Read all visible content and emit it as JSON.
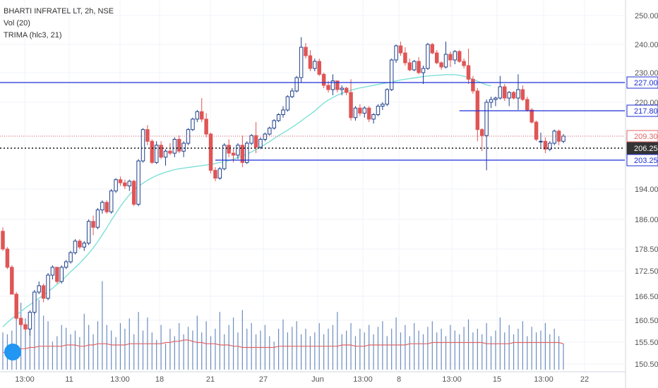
{
  "legend": {
    "title": "BHARTI INFRATEL LT, 2h, NSE",
    "volume": "Vol (20)",
    "indicator": "TRIMA (hlc3, 21)"
  },
  "colors": {
    "up": "#1e3f8a",
    "down": "#e05555",
    "trima": "#7ee0d6",
    "volume": "#6c8cc0",
    "volume_ma": "#e06666",
    "level_line": "#1c2fd6",
    "last_price": "#e06666",
    "dotted": "#111111"
  },
  "chart_data": {
    "type": "candlestick",
    "yaxis_ticks": [
      "250.00",
      "240.00",
      "230.00",
      "220.00",
      "209.30",
      "194.00",
      "186.00",
      "178.50",
      "172.50",
      "166.50",
      "160.50",
      "155.50",
      "150.50"
    ],
    "xaxis_ticks": [
      "13:00",
      "11",
      "13:00",
      "18",
      "21",
      "27",
      "Jun",
      "13:00",
      "8",
      "13:00",
      "15",
      "13:00",
      "22"
    ],
    "price_labels": [
      {
        "text": "227.00",
        "value": 227.0,
        "style": "level"
      },
      {
        "text": "217.80",
        "value": 217.8,
        "style": "level"
      },
      {
        "text": "209.30",
        "value": 209.3,
        "style": "last"
      },
      {
        "text": "206.25",
        "value": 206.25,
        "style": "dark"
      },
      {
        "text": "203.25",
        "value": 203.25,
        "style": "level"
      }
    ],
    "horizontal_lines": [
      {
        "value": 227.0,
        "from_bar": 0,
        "to_bar": -1
      },
      {
        "value": 217.8,
        "from_bar": 101,
        "to_bar": -1
      },
      {
        "value": 203.25,
        "from_bar": 47,
        "to_bar": -1
      }
    ],
    "candles": [
      [
        183.0,
        184.0,
        178.0,
        178.5
      ],
      [
        178.5,
        179.0,
        173.0,
        173.5
      ],
      [
        173.5,
        174.0,
        167.0,
        167.0
      ],
      [
        167.0,
        167.5,
        160.5,
        161.0
      ],
      [
        161.0,
        161.5,
        159.0,
        159.5
      ],
      [
        159.5,
        160.0,
        158.0,
        158.5
      ],
      [
        158.5,
        163.0,
        157.0,
        162.5
      ],
      [
        162.5,
        168.0,
        162.0,
        167.5
      ],
      [
        167.5,
        170.0,
        167.0,
        169.0
      ],
      [
        169.0,
        169.5,
        165.0,
        166.0
      ],
      [
        166.0,
        172.0,
        165.5,
        171.5
      ],
      [
        171.5,
        174.0,
        170.5,
        173.5
      ],
      [
        173.5,
        173.5,
        169.5,
        170.0
      ],
      [
        170.0,
        174.0,
        169.5,
        173.5
      ],
      [
        173.5,
        175.5,
        173.0,
        175.0
      ],
      [
        175.0,
        178.0,
        174.5,
        177.5
      ],
      [
        177.5,
        181.0,
        177.0,
        180.5
      ],
      [
        180.5,
        181.0,
        178.5,
        179.0
      ],
      [
        179.0,
        180.5,
        178.0,
        180.0
      ],
      [
        180.0,
        186.0,
        179.5,
        185.5
      ],
      [
        185.5,
        187.0,
        182.0,
        184.0
      ],
      [
        184.0,
        189.0,
        183.5,
        188.5
      ],
      [
        188.5,
        191.0,
        187.5,
        190.5
      ],
      [
        190.5,
        191.0,
        187.5,
        188.0
      ],
      [
        188.0,
        194.0,
        187.5,
        193.5
      ],
      [
        193.5,
        197.5,
        193.0,
        197.0
      ],
      [
        197.0,
        198.0,
        195.0,
        196.0
      ],
      [
        196.0,
        197.0,
        194.0,
        195.0
      ],
      [
        195.0,
        197.0,
        193.5,
        196.5
      ],
      [
        196.5,
        197.0,
        189.5,
        190.0
      ],
      [
        190.0,
        203.5,
        189.5,
        203.0
      ],
      [
        203.0,
        212.0,
        202.5,
        211.5
      ],
      [
        211.5,
        213.0,
        207.0,
        208.0
      ],
      [
        208.0,
        208.5,
        202.0,
        202.5
      ],
      [
        202.5,
        208.0,
        202.0,
        207.0
      ],
      [
        207.0,
        208.0,
        203.5,
        204.0
      ],
      [
        204.0,
        206.0,
        201.5,
        205.5
      ],
      [
        205.5,
        207.5,
        204.5,
        205.0
      ],
      [
        205.0,
        209.0,
        204.0,
        208.5
      ],
      [
        208.5,
        209.5,
        205.0,
        205.5
      ],
      [
        205.5,
        208.0,
        204.0,
        207.5
      ],
      [
        207.5,
        212.0,
        207.0,
        211.5
      ],
      [
        211.5,
        215.5,
        211.0,
        215.0
      ],
      [
        215.0,
        218.0,
        214.0,
        217.5
      ],
      [
        217.5,
        221.5,
        214.0,
        215.0
      ],
      [
        215.0,
        217.0,
        209.0,
        210.0
      ],
      [
        210.0,
        210.5,
        199.0,
        200.0
      ],
      [
        200.0,
        201.0,
        196.5,
        197.5
      ],
      [
        197.5,
        201.0,
        197.0,
        200.5
      ],
      [
        200.5,
        207.5,
        200.0,
        207.0
      ],
      [
        207.0,
        208.5,
        204.0,
        205.0
      ],
      [
        205.0,
        206.0,
        202.5,
        204.5
      ],
      [
        204.5,
        207.5,
        203.5,
        207.0
      ],
      [
        207.0,
        209.5,
        201.0,
        202.5
      ],
      [
        202.5,
        208.0,
        202.0,
        207.5
      ],
      [
        207.5,
        210.0,
        207.0,
        209.5
      ],
      [
        209.5,
        214.0,
        205.0,
        206.5
      ],
      [
        206.5,
        209.0,
        206.0,
        208.5
      ],
      [
        208.5,
        210.5,
        208.0,
        210.0
      ],
      [
        210.0,
        212.5,
        209.5,
        212.0
      ],
      [
        212.0,
        215.0,
        211.5,
        214.5
      ],
      [
        214.5,
        217.0,
        214.0,
        216.5
      ],
      [
        216.5,
        219.0,
        215.5,
        218.0
      ],
      [
        218.0,
        222.5,
        217.5,
        222.0
      ],
      [
        222.0,
        225.0,
        221.5,
        224.0
      ],
      [
        224.0,
        229.0,
        223.5,
        228.5
      ],
      [
        228.5,
        242.5,
        227.0,
        239.0
      ],
      [
        239.0,
        240.5,
        235.0,
        236.0
      ],
      [
        236.0,
        238.0,
        230.5,
        231.5
      ],
      [
        231.5,
        235.0,
        230.5,
        234.0
      ],
      [
        234.0,
        235.0,
        229.0,
        229.5
      ],
      [
        229.5,
        230.0,
        225.0,
        226.0
      ],
      [
        226.0,
        227.5,
        223.5,
        224.5
      ],
      [
        224.5,
        229.5,
        222.5,
        227.5
      ],
      [
        227.5,
        227.5,
        223.5,
        224.5
      ],
      [
        224.5,
        226.0,
        222.5,
        225.0
      ],
      [
        225.0,
        225.5,
        222.5,
        223.5
      ],
      [
        223.5,
        228.0,
        214.5,
        215.5
      ],
      [
        215.5,
        219.0,
        214.5,
        218.5
      ],
      [
        218.5,
        219.5,
        216.0,
        217.0
      ],
      [
        217.0,
        219.0,
        215.5,
        218.5
      ],
      [
        218.5,
        219.0,
        214.0,
        215.0
      ],
      [
        215.0,
        217.0,
        213.5,
        216.5
      ],
      [
        216.5,
        219.5,
        216.0,
        219.0
      ],
      [
        219.0,
        220.0,
        218.0,
        219.5
      ],
      [
        219.5,
        225.0,
        219.0,
        224.5
      ],
      [
        224.5,
        235.0,
        224.0,
        234.5
      ],
      [
        234.5,
        240.0,
        233.5,
        239.5
      ],
      [
        239.5,
        241.0,
        236.0,
        237.0
      ],
      [
        237.0,
        239.0,
        232.5,
        233.5
      ],
      [
        233.5,
        235.0,
        230.5,
        231.0
      ],
      [
        231.0,
        234.5,
        230.5,
        234.0
      ],
      [
        234.0,
        235.5,
        229.5,
        230.0
      ],
      [
        230.0,
        232.5,
        226.5,
        231.5
      ],
      [
        231.5,
        240.5,
        231.0,
        240.0
      ],
      [
        240.0,
        240.5,
        236.5,
        237.0
      ],
      [
        237.0,
        238.0,
        233.0,
        233.5
      ],
      [
        233.5,
        234.0,
        231.0,
        232.0
      ],
      [
        232.0,
        241.0,
        231.5,
        236.5
      ],
      [
        236.5,
        237.5,
        232.0,
        234.5
      ],
      [
        234.5,
        238.0,
        233.0,
        237.5
      ],
      [
        237.5,
        238.0,
        233.5,
        234.0
      ],
      [
        234.0,
        235.0,
        231.5,
        232.5
      ],
      [
        232.5,
        238.5,
        226.5,
        228.0
      ],
      [
        228.0,
        229.0,
        223.0,
        224.0
      ],
      [
        224.0,
        225.0,
        208.0,
        211.5
      ],
      [
        211.5,
        212.0,
        205.5,
        209.5
      ],
      [
        209.5,
        221.0,
        200.0,
        220.0
      ],
      [
        220.0,
        222.0,
        218.5,
        221.0
      ],
      [
        221.0,
        222.0,
        219.0,
        221.5
      ],
      [
        221.5,
        229.0,
        221.0,
        225.5
      ],
      [
        225.5,
        226.5,
        220.5,
        221.5
      ],
      [
        221.5,
        224.0,
        219.0,
        223.5
      ],
      [
        223.5,
        224.0,
        221.0,
        221.5
      ],
      [
        221.5,
        229.5,
        218.0,
        224.5
      ],
      [
        224.5,
        226.0,
        220.5,
        221.0
      ],
      [
        221.0,
        222.0,
        217.5,
        218.0
      ],
      [
        218.0,
        218.5,
        213.5,
        214.0
      ],
      [
        214.0,
        214.5,
        208.0,
        208.5
      ],
      [
        208.0,
        210.5,
        206.5,
        208.0
      ],
      [
        208.0,
        209.0,
        205.0,
        206.0
      ],
      [
        206.0,
        208.0,
        205.5,
        207.5
      ],
      [
        207.5,
        211.5,
        207.0,
        211.0
      ],
      [
        211.0,
        211.5,
        207.0,
        208.0
      ],
      [
        208.0,
        210.0,
        207.5,
        209.3
      ]
    ],
    "trima": [
      159.0,
      160.0,
      160.9,
      161.8,
      162.7,
      163.6,
      164.4,
      165.2,
      166.0,
      166.8,
      167.6,
      168.4,
      169.3,
      170.2,
      171.2,
      172.3,
      173.4,
      174.6,
      175.9,
      177.3,
      178.8,
      180.4,
      182.1,
      183.9,
      185.8,
      187.6,
      189.4,
      191.0,
      192.5,
      193.8,
      194.9,
      195.9,
      196.8,
      197.6,
      198.3,
      198.9,
      199.4,
      199.8,
      200.2,
      200.5,
      200.7,
      200.9,
      201.1,
      201.3,
      201.5,
      201.7,
      201.9,
      202.2,
      202.5,
      202.8,
      203.1,
      203.5,
      203.9,
      204.3,
      204.8,
      205.3,
      205.9,
      206.5,
      207.2,
      207.9,
      208.7,
      209.5,
      210.4,
      211.3,
      212.3,
      213.3,
      214.4,
      215.5,
      216.6,
      217.7,
      218.8,
      219.8,
      220.8,
      221.7,
      222.5,
      223.2,
      223.8,
      224.3,
      224.7,
      225.1,
      225.4,
      225.7,
      226.0,
      226.3,
      226.6,
      226.9,
      227.2,
      227.5,
      227.8,
      228.0,
      228.2,
      228.4,
      228.6,
      228.8,
      229.0,
      229.1,
      229.2,
      229.3,
      229.4,
      229.4,
      229.4,
      229.2,
      228.9,
      228.5,
      228.0,
      227.4,
      226.8,
      226.2,
      225.8
    ]
  },
  "volume": {
    "bars": [
      40,
      38,
      42,
      62,
      72,
      55,
      45,
      64,
      75,
      58,
      52,
      30,
      36,
      48,
      45,
      38,
      42,
      35,
      60,
      48,
      38,
      52,
      95,
      48,
      42,
      35,
      50,
      44,
      55,
      38,
      62,
      42,
      56,
      40,
      32,
      48,
      28,
      44,
      36,
      50,
      38,
      46,
      42,
      58,
      40,
      52,
      36,
      44,
      62,
      38,
      48,
      56,
      40,
      64,
      44,
      50,
      38,
      42,
      48,
      36,
      30,
      44,
      54,
      40,
      46,
      52,
      38,
      44,
      36,
      40,
      50,
      38,
      44,
      48,
      62,
      38,
      42,
      50,
      36,
      44,
      40,
      48,
      38,
      46,
      52,
      36,
      44,
      56,
      40,
      48,
      36,
      50,
      42,
      38,
      46,
      52,
      40,
      44,
      36,
      48,
      42,
      38,
      46,
      54,
      40,
      44,
      38,
      50,
      36,
      42,
      56,
      40,
      48,
      38,
      44,
      52,
      36,
      46,
      40,
      42,
      50,
      38,
      44,
      36,
      28,
      20
    ],
    "ma": [
      14,
      14,
      15,
      16,
      17,
      17,
      18,
      18,
      19,
      19,
      19,
      19,
      19,
      19,
      20,
      20,
      20,
      19,
      19,
      20,
      20,
      21,
      21,
      21,
      20,
      20,
      20,
      20,
      21,
      21,
      21,
      21,
      21,
      21,
      21,
      21,
      22,
      22,
      23,
      23,
      24,
      24,
      23,
      22,
      22,
      21,
      21,
      21,
      20,
      20,
      20,
      19,
      19,
      18,
      18,
      18,
      18,
      18,
      18,
      18,
      18,
      19,
      19,
      19,
      19,
      19,
      19,
      19,
      19,
      19,
      19,
      19,
      19,
      19,
      19,
      20,
      20,
      20,
      19,
      19,
      19,
      20,
      20,
      20,
      20,
      20,
      20,
      20,
      20,
      20,
      21,
      21,
      21,
      21,
      21,
      22,
      22,
      22,
      22,
      22,
      22,
      22,
      22,
      22,
      22,
      22,
      22,
      21,
      21,
      21,
      21,
      21,
      21,
      22,
      22,
      22,
      22,
      22,
      22,
      22,
      22,
      22,
      22,
      22,
      21,
      21,
      20
    ]
  }
}
